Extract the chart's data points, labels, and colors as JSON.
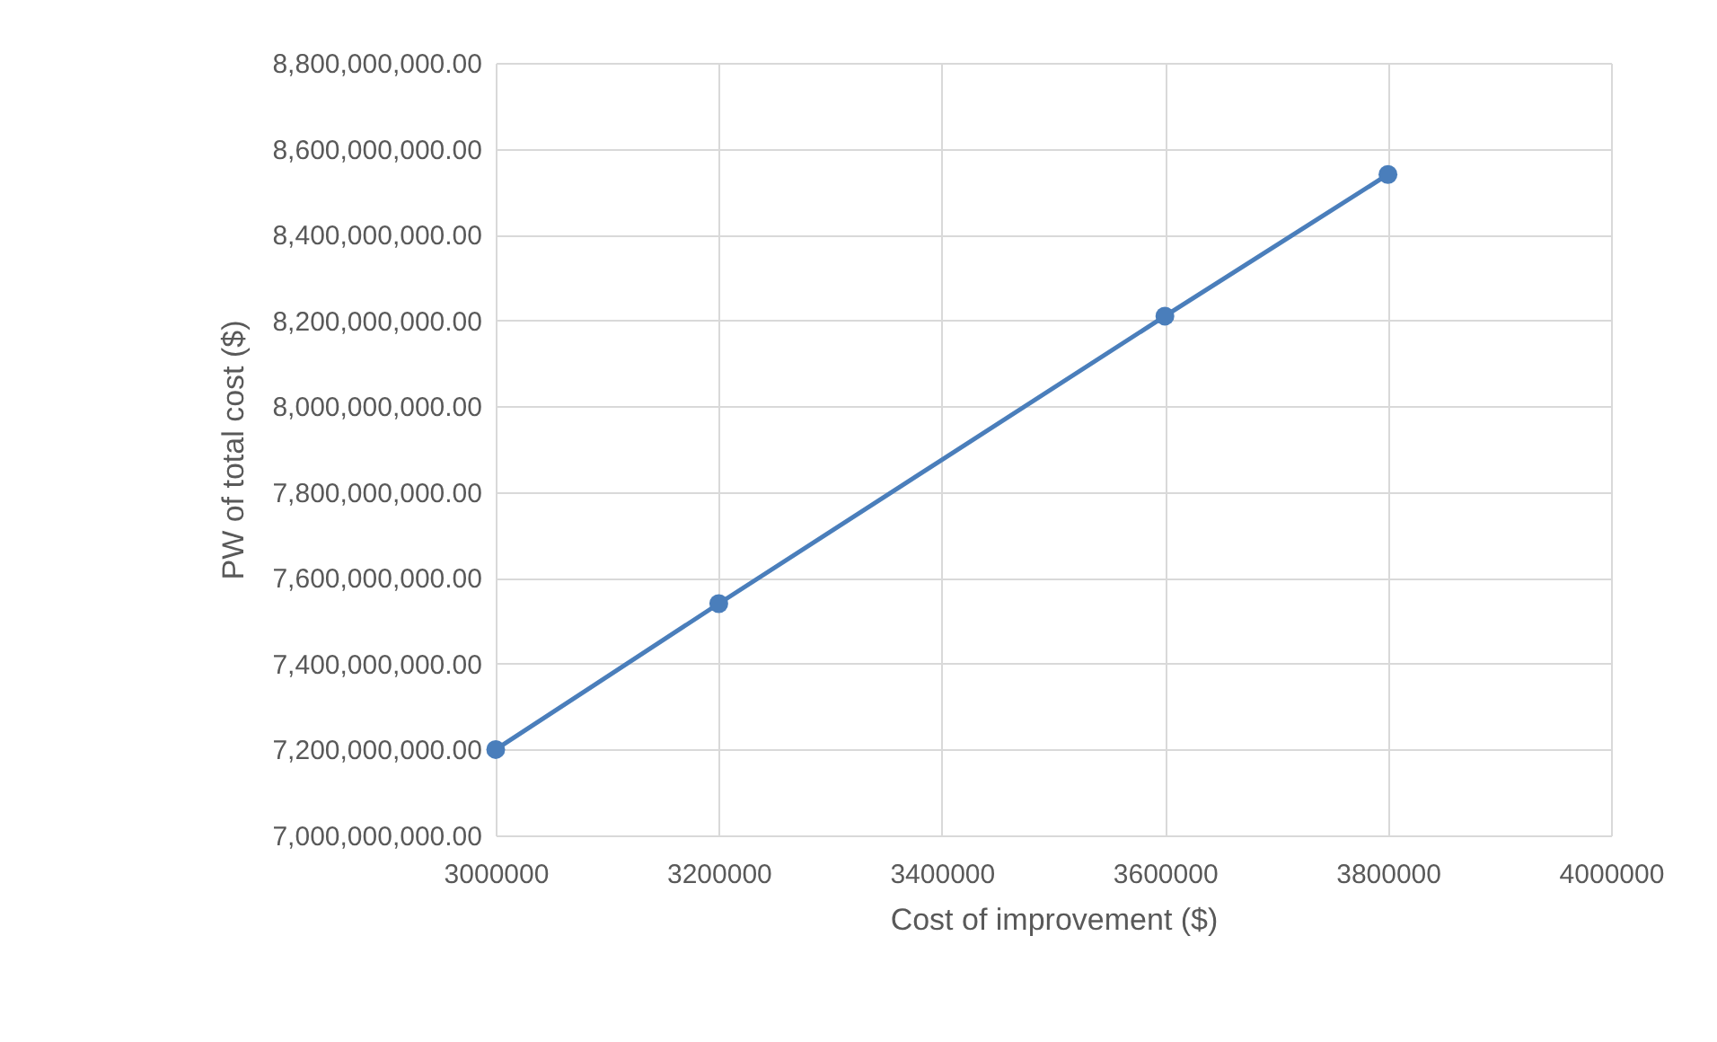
{
  "chart_data": {
    "type": "line",
    "xlabel": "Cost of improvement ($)",
    "ylabel": "PW of total cost ($)",
    "x": [
      3000000,
      3200000,
      3600000,
      3800000
    ],
    "series": [
      {
        "color": "#4a7ebb",
        "values": [
          7200000000,
          7540000000,
          8210000000,
          8540000000
        ]
      }
    ],
    "xlim": [
      3000000,
      4000000
    ],
    "xticks": [
      3000000,
      3200000,
      3400000,
      3600000,
      3800000,
      4000000
    ],
    "ylim": [
      7000000000,
      8800000000
    ],
    "yticks": [
      {
        "value": 7000000000,
        "label": "7,000,000,000.00"
      },
      {
        "value": 7200000000,
        "label": "7,200,000,000.00"
      },
      {
        "value": 7400000000,
        "label": "7,400,000,000.00"
      },
      {
        "value": 7600000000,
        "label": "7,600,000,000.00"
      },
      {
        "value": 7800000000,
        "label": "7,800,000,000.00"
      },
      {
        "value": 8000000000,
        "label": "8,000,000,000.00"
      },
      {
        "value": 8200000000,
        "label": "8,200,000,000.00"
      },
      {
        "value": 8400000000,
        "label": "8,400,000,000.00"
      },
      {
        "value": 8600000000,
        "label": "8,600,000,000.00"
      },
      {
        "value": 8800000000,
        "label": "8,800,000,000.00"
      }
    ],
    "grid": true,
    "marker": "circle",
    "line_style": "solid"
  }
}
